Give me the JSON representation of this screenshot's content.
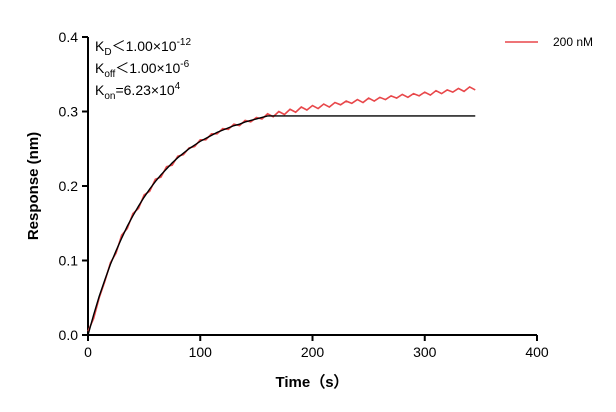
{
  "chart_data": {
    "type": "line",
    "xlabel": "Time（s）",
    "ylabel": "Response (nm)",
    "annotations": [
      {
        "symbol": "K",
        "subscript": "D",
        "text": "＜1.00×10",
        "exponent": "-12"
      },
      {
        "symbol": "K",
        "subscript": "off",
        "text": "＜1.00×10",
        "exponent": "-6"
      },
      {
        "symbol": "K",
        "subscript": "on",
        "text": "=6.23×10",
        "exponent": "4"
      }
    ],
    "x": [
      0,
      5,
      10,
      15,
      20,
      25,
      30,
      35,
      40,
      45,
      50,
      55,
      60,
      65,
      70,
      75,
      80,
      85,
      90,
      95,
      100,
      105,
      110,
      115,
      120,
      125,
      130,
      135,
      140,
      145,
      150,
      155,
      160,
      165,
      170,
      175,
      180,
      185,
      190,
      195,
      200,
      205,
      210,
      215,
      220,
      225,
      230,
      235,
      240,
      245,
      250,
      255,
      260,
      265,
      270,
      275,
      280,
      285,
      290,
      295,
      300,
      305,
      310,
      315,
      320,
      325,
      330,
      335,
      340,
      345
    ],
    "series": [
      {
        "name": "200 nM",
        "color": "#e8474a",
        "values": [
          0.005,
          0.022,
          0.05,
          0.072,
          0.097,
          0.11,
          0.134,
          0.143,
          0.163,
          0.17,
          0.188,
          0.193,
          0.209,
          0.212,
          0.226,
          0.228,
          0.24,
          0.242,
          0.251,
          0.253,
          0.262,
          0.262,
          0.27,
          0.27,
          0.277,
          0.276,
          0.283,
          0.281,
          0.288,
          0.286,
          0.292,
          0.29,
          0.297,
          0.293,
          0.3,
          0.296,
          0.303,
          0.299,
          0.306,
          0.302,
          0.308,
          0.304,
          0.31,
          0.306,
          0.312,
          0.309,
          0.314,
          0.311,
          0.316,
          0.312,
          0.318,
          0.314,
          0.319,
          0.316,
          0.321,
          0.318,
          0.323,
          0.319,
          0.324,
          0.321,
          0.326,
          0.322,
          0.328,
          0.324,
          0.329,
          0.326,
          0.331,
          0.327,
          0.333,
          0.329
        ]
      },
      {
        "color": "#000000",
        "values": [
          0,
          0.027,
          0.052,
          0.074,
          0.095,
          0.113,
          0.13,
          0.146,
          0.16,
          0.173,
          0.185,
          0.196,
          0.206,
          0.215,
          0.223,
          0.231,
          0.238,
          0.244,
          0.25,
          0.255,
          0.26,
          0.264,
          0.268,
          0.272,
          0.275,
          0.278,
          0.281,
          0.283,
          0.286,
          0.288,
          0.29,
          0.292,
          0.294,
          0.294,
          0.294,
          0.294,
          0.294,
          0.294,
          0.294,
          0.294,
          0.294,
          0.294,
          0.294,
          0.294,
          0.294,
          0.294,
          0.294,
          0.294,
          0.294,
          0.294,
          0.294,
          0.294,
          0.294,
          0.294,
          0.294,
          0.294,
          0.294,
          0.294,
          0.294,
          0.294,
          0.294,
          0.294,
          0.294,
          0.294,
          0.294,
          0.294,
          0.294,
          0.294,
          0.294,
          0.294
        ]
      }
    ],
    "xlim": [
      0,
      400
    ],
    "xticks": [
      0,
      100,
      200,
      300,
      400
    ],
    "ylim": [
      0,
      0.4
    ],
    "yticks": [
      {
        "value": 0,
        "label": "0.0"
      },
      0.1,
      0.2,
      0.3,
      0.4
    ],
    "legend": "top-right"
  }
}
